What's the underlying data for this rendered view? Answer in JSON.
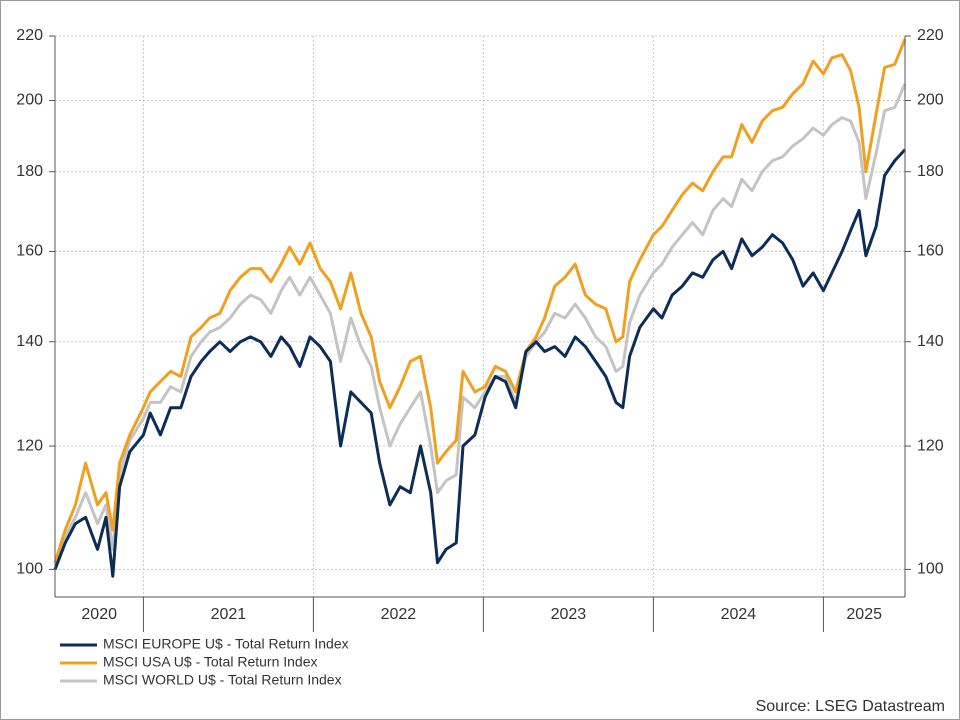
{
  "chart_data": {
    "type": "line",
    "x": [
      2020.48,
      2020.54,
      2020.6,
      2020.66,
      2020.73,
      2020.78,
      2020.82,
      2020.86,
      2020.92,
      2021.0,
      2021.04,
      2021.1,
      2021.16,
      2021.22,
      2021.28,
      2021.34,
      2021.39,
      2021.45,
      2021.51,
      2021.57,
      2021.63,
      2021.69,
      2021.75,
      2021.81,
      2021.86,
      2021.92,
      2021.98,
      2022.04,
      2022.1,
      2022.16,
      2022.22,
      2022.28,
      2022.34,
      2022.39,
      2022.45,
      2022.51,
      2022.57,
      2022.63,
      2022.69,
      2022.73,
      2022.78,
      2022.84,
      2022.88,
      2022.95,
      2023.01,
      2023.07,
      2023.13,
      2023.19,
      2023.25,
      2023.31,
      2023.36,
      2023.42,
      2023.48,
      2023.54,
      2023.6,
      2023.66,
      2023.72,
      2023.78,
      2023.82,
      2023.86,
      2023.92,
      2024.0,
      2024.05,
      2024.11,
      2024.17,
      2024.23,
      2024.29,
      2024.35,
      2024.41,
      2024.46,
      2024.52,
      2024.58,
      2024.64,
      2024.7,
      2024.76,
      2024.82,
      2024.88,
      2024.94,
      2025.0,
      2025.05,
      2025.11,
      2025.16,
      2025.21,
      2025.25,
      2025.31,
      2025.36,
      2025.42,
      2025.48
    ],
    "series": [
      {
        "name": "MSCI EUROPE U$ - Total Return Index",
        "color": "#0c2d57",
        "values": [
          100,
          104,
          107,
          108,
          103,
          108,
          99,
          113,
          119,
          122,
          126,
          122,
          127,
          127,
          133,
          136,
          138,
          140,
          138,
          140,
          141,
          140,
          137,
          141,
          139,
          135,
          141,
          139,
          136,
          120,
          130,
          128,
          126,
          117,
          110,
          113,
          112,
          120,
          112,
          101,
          103,
          104,
          120,
          122,
          129,
          133,
          132,
          127,
          138,
          140,
          138,
          139,
          137,
          141,
          139,
          136,
          133,
          128,
          127,
          137,
          143,
          147,
          145,
          150,
          152,
          155,
          154,
          158,
          160,
          156,
          163,
          159,
          161,
          164,
          162,
          158,
          152,
          155,
          151,
          155,
          160,
          165,
          170,
          159,
          166,
          179,
          183,
          186
        ]
      },
      {
        "name": "MSCI USA U$ - Total Return Index",
        "color": "#f0a020",
        "values": [
          101,
          106,
          110,
          117,
          110,
          112,
          106,
          117,
          122,
          127,
          130,
          132,
          134,
          133,
          141,
          143,
          145,
          146,
          151,
          154,
          156,
          156,
          153,
          157,
          161,
          157,
          162,
          156,
          153,
          147,
          155,
          146,
          141,
          132,
          127,
          131,
          136,
          137,
          127,
          117,
          119,
          121,
          134,
          130,
          131,
          135,
          134,
          130,
          138,
          141,
          145,
          152,
          154,
          157,
          150,
          148,
          147,
          140,
          141,
          153,
          158,
          164,
          166,
          170,
          174,
          177,
          175,
          180,
          184,
          184,
          193,
          188,
          194,
          197,
          198,
          202,
          205,
          212,
          208,
          213,
          214,
          209,
          198,
          180,
          196,
          210,
          211,
          219
        ]
      },
      {
        "name": "MSCI WORLD U$ - Total Return Index",
        "color": "#c4c4c4",
        "values": [
          101,
          105,
          108,
          112,
          107,
          110,
          103,
          115,
          121,
          125,
          128,
          128,
          131,
          130,
          137,
          140,
          142,
          143,
          145,
          148,
          150,
          149,
          146,
          151,
          154,
          150,
          154,
          150,
          146,
          136,
          145,
          139,
          135,
          127,
          120,
          124,
          127,
          130,
          120,
          112,
          114,
          115,
          129,
          127,
          130,
          133,
          133,
          128,
          137,
          140,
          142,
          146,
          145,
          148,
          145,
          141,
          139,
          134,
          135,
          144,
          150,
          155,
          157,
          161,
          164,
          167,
          164,
          170,
          173,
          171,
          178,
          175,
          180,
          183,
          184,
          187,
          189,
          192,
          190,
          193,
          195,
          194,
          188,
          173,
          185,
          197,
          198,
          205
        ]
      }
    ],
    "xlim": [
      2020.48,
      2025.48
    ],
    "xticks": [
      2020,
      2021,
      2022,
      2023,
      2024,
      2025
    ],
    "ylim": [
      96,
      220
    ],
    "yticks": [
      100,
      120,
      140,
      160,
      180,
      200,
      220
    ],
    "y2lim": [
      96,
      220
    ],
    "y2ticks": [
      100,
      120,
      140,
      160,
      180,
      200,
      220
    ],
    "y_scale": "log",
    "grid": true,
    "legend": "bottom-left",
    "source": "Source: LSEG Datastream"
  }
}
